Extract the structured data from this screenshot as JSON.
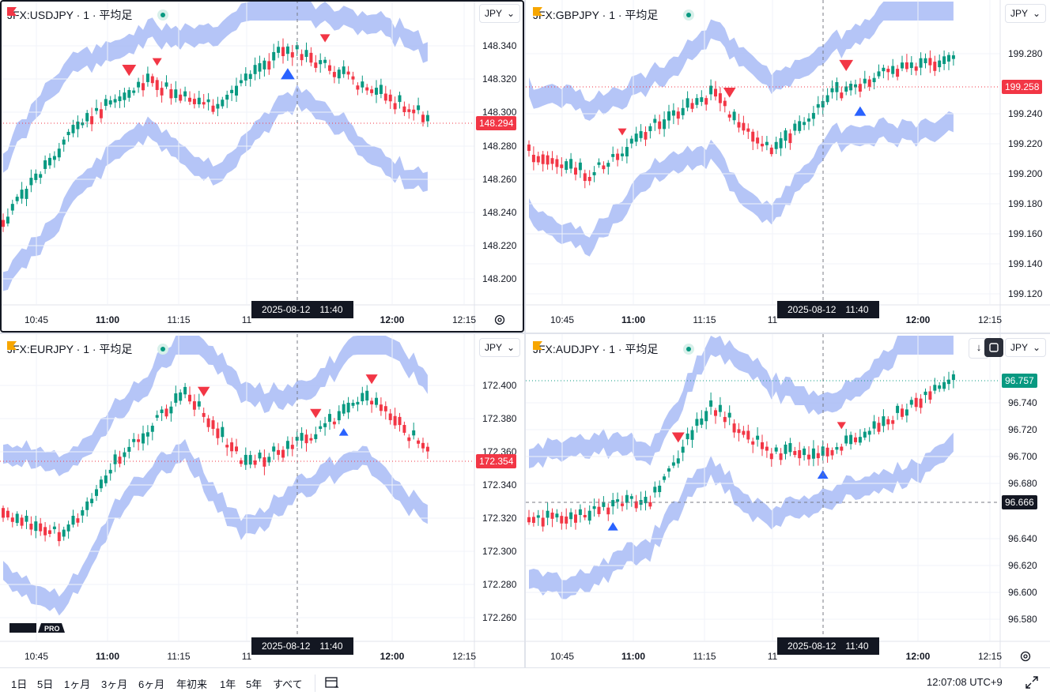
{
  "layout_title": "",
  "panes": [
    {
      "id": "usdjpy",
      "symbol": "JFX:USDJPY · 1 · 平均足",
      "flag_color": "#f23645",
      "currency": "JPY",
      "price_labels": [
        "148.340",
        "148.320",
        "148.300",
        "148.280",
        "148.260",
        "148.240",
        "148.220",
        "148.200"
      ],
      "time_labels": [
        "10:45",
        "11:00",
        "11:15",
        "11",
        "12:00",
        "12:15"
      ],
      "last_price": "148.294",
      "last_price_color": "#f23645",
      "crosshair_time": "2025-08-12　11:40",
      "seed": 11,
      "trend": [
        0.15,
        0.55,
        0.75,
        0.65,
        0.9,
        0.75,
        0.6
      ]
    },
    {
      "id": "gbpjpy",
      "symbol": "JFX:GBPJPY · 1 · 平均足",
      "flag_color": "#f7a600",
      "currency": "JPY",
      "price_labels": [
        "199.280",
        "199.240",
        "199.220",
        "199.200",
        "199.180",
        "199.160",
        "199.140",
        "199.120"
      ],
      "time_labels": [
        "10:45",
        "11:00",
        "11:15",
        "11",
        "12:00",
        "12:15"
      ],
      "last_price": "199.258",
      "last_price_color": "#f23645",
      "crosshair_time": "2025-08-12　11:40",
      "seed": 23,
      "trend": [
        0.45,
        0.35,
        0.55,
        0.7,
        0.45,
        0.7,
        0.8,
        0.85
      ]
    },
    {
      "id": "eurjpy",
      "symbol": "JFX:EURJPY · 1 · 平均足",
      "flag_color": "#f7a600",
      "currency": "JPY",
      "price_labels": [
        "172.400",
        "172.380",
        "172.360",
        "172.340",
        "172.320",
        "172.300",
        "172.280",
        "172.260"
      ],
      "time_labels": [
        "10:45",
        "11:00",
        "11:15",
        "11",
        "12:00",
        "12:15"
      ],
      "last_price": "172.354",
      "last_price_color": "#f23645",
      "crosshair_time": "2025-08-12　11:40",
      "seed": 37,
      "trend": [
        0.35,
        0.25,
        0.6,
        0.85,
        0.55,
        0.65,
        0.85,
        0.6
      ]
    },
    {
      "id": "audjpy",
      "symbol": "JFX:AUDJPY · 1 · 平均足",
      "flag_color": "#f7a600",
      "currency": "JPY",
      "price_labels": [
        "96.740",
        "96.720",
        "96.700",
        "96.680",
        "96.640",
        "96.620",
        "96.600",
        "96.580"
      ],
      "time_labels": [
        "10:45",
        "11:00",
        "11:15",
        "11",
        "12:00",
        "12:15"
      ],
      "last_price": "96.757",
      "last_price_color": "#089981",
      "crosshair_price": "96.666",
      "crosshair_time": "2025-08-12　11:40",
      "seed": 51,
      "trend": [
        0.3,
        0.35,
        0.4,
        0.8,
        0.6,
        0.6,
        0.75,
        0.9
      ]
    }
  ],
  "bottom_bar": {
    "periods": [
      "1日",
      "5日",
      "1ヶ月",
      "3ヶ月",
      "6ヶ月",
      "年初来",
      "1年",
      "5年",
      "すべて"
    ],
    "clock": "12:07:08 UTC+9"
  },
  "colors": {
    "up": "#089981",
    "down": "#f23645",
    "band": "#a3b6f5",
    "grid": "#f0f3fa"
  },
  "icons": [
    "flag-icon",
    "status-dot-icon",
    "chevron-down-icon",
    "settings-icon",
    "arrow-down-icon",
    "sync-icon",
    "compare-icon",
    "fullscreen-icon",
    "tradingview-pro-logo"
  ]
}
